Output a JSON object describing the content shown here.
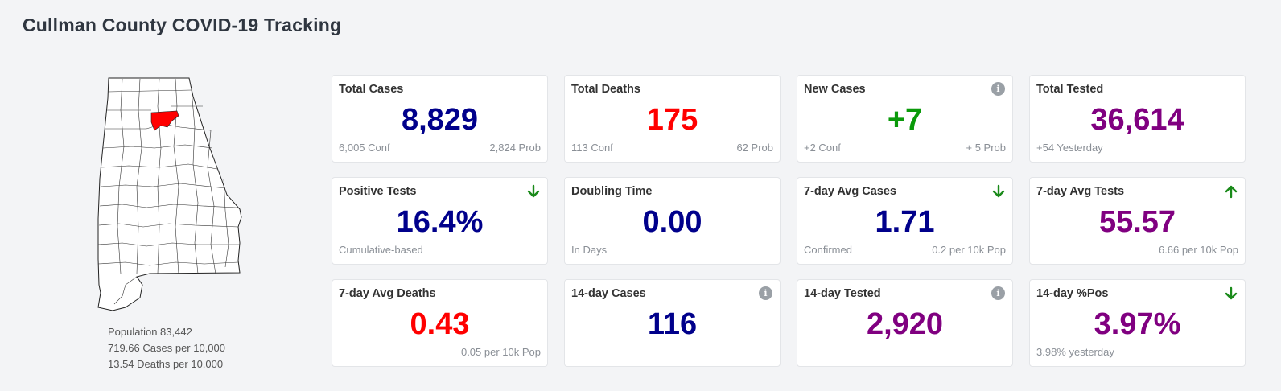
{
  "page": {
    "title": "Cullman County COVID-19 Tracking"
  },
  "colors": {
    "navy": "#00008b",
    "red": "#ff0000",
    "green": "#0a9a0a",
    "purple": "#800080",
    "county_highlight": "#ff0000",
    "arrow_green": "#1a8a1a"
  },
  "county_info": {
    "population": "Population 83,442",
    "cases_per": "719.66 Cases per 10,000",
    "deaths_per": "13.54 Deaths per 10,000"
  },
  "cards": [
    {
      "title": "Total Cases",
      "value": "8,829",
      "color": "#00008b",
      "sub_left": "6,005 Conf",
      "sub_right": "2,824 Prob",
      "icon": ""
    },
    {
      "title": "Total Deaths",
      "value": "175",
      "color": "#ff0000",
      "sub_left": "113 Conf",
      "sub_right": "62 Prob",
      "icon": ""
    },
    {
      "title": "New Cases",
      "value": "+7",
      "color": "#0a9a0a",
      "sub_left": "+2 Conf",
      "sub_right": "+ 5 Prob",
      "icon": "info-icon"
    },
    {
      "title": "Total Tested",
      "value": "36,614",
      "color": "#800080",
      "sub_left": "+54 Yesterday",
      "sub_right": "",
      "icon": ""
    },
    {
      "title": "Positive Tests",
      "value": "16.4%",
      "color": "#00008b",
      "sub_left": "Cumulative-based",
      "sub_right": "",
      "icon": "arrow-down-icon"
    },
    {
      "title": "Doubling Time",
      "value": "0.00",
      "color": "#00008b",
      "sub_left": "In Days",
      "sub_right": "",
      "icon": ""
    },
    {
      "title": "7-day Avg Cases",
      "value": "1.71",
      "color": "#00008b",
      "sub_left": "Confirmed",
      "sub_right": "0.2 per 10k Pop",
      "icon": "arrow-down-icon"
    },
    {
      "title": "7-day Avg Tests",
      "value": "55.57",
      "color": "#800080",
      "sub_left": "",
      "sub_right": "6.66 per 10k Pop",
      "icon": "arrow-up-icon"
    },
    {
      "title": "7-day Avg Deaths",
      "value": "0.43",
      "color": "#ff0000",
      "sub_left": "",
      "sub_right": "0.05 per 10k Pop",
      "icon": ""
    },
    {
      "title": "14-day Cases",
      "value": "116",
      "color": "#00008b",
      "sub_left": "",
      "sub_right": "",
      "icon": "info-icon"
    },
    {
      "title": "14-day Tested",
      "value": "2,920",
      "color": "#800080",
      "sub_left": "",
      "sub_right": "",
      "icon": "info-icon"
    },
    {
      "title": "14-day %Pos",
      "value": "3.97%",
      "color": "#800080",
      "sub_left": "3.98% yesterday",
      "sub_right": "",
      "icon": "arrow-down-icon"
    }
  ]
}
